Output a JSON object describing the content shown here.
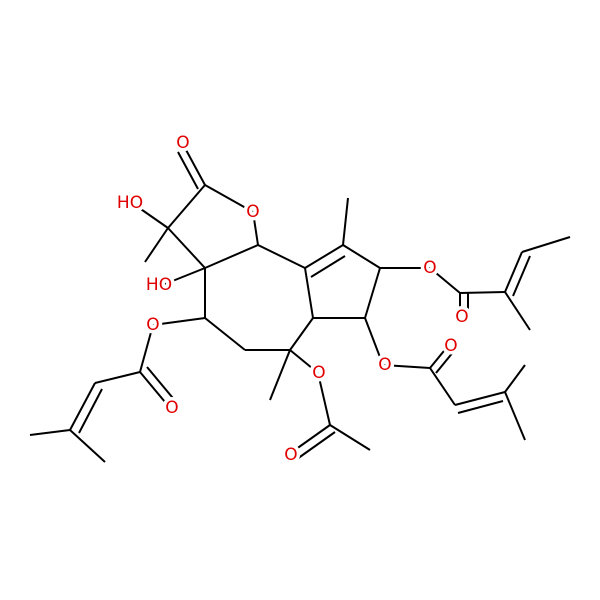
{
  "atoms": {
    "labels": [
      "O",
      "O",
      "HO",
      "HO",
      "O",
      "O",
      "O",
      "O",
      "O",
      "O",
      "O",
      "O"
    ]
  }
}
